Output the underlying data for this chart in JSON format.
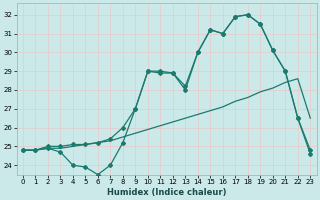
{
  "xlabel": "Humidex (Indice chaleur)",
  "xlim": [
    -0.5,
    23.5
  ],
  "ylim": [
    23.5,
    32.6
  ],
  "yticks": [
    24,
    25,
    26,
    27,
    28,
    29,
    30,
    31,
    32
  ],
  "xticks": [
    0,
    1,
    2,
    3,
    4,
    5,
    6,
    7,
    8,
    9,
    10,
    11,
    12,
    13,
    14,
    15,
    16,
    17,
    18,
    19,
    20,
    21,
    22,
    23
  ],
  "bg_color": "#cce9e9",
  "grid_color": "#b0d8d8",
  "line_color": "#1a7a6e",
  "line1_y": [
    24.8,
    24.8,
    24.9,
    24.7,
    24.0,
    23.9,
    23.5,
    24.0,
    25.2,
    27.0,
    29.0,
    29.0,
    28.9,
    28.0,
    30.0,
    31.2,
    31.0,
    31.9,
    32.0,
    31.5,
    30.1,
    29.0,
    26.5,
    24.6
  ],
  "line2_y": [
    24.8,
    24.8,
    24.9,
    24.9,
    25.0,
    25.1,
    25.2,
    25.3,
    25.5,
    25.7,
    25.9,
    26.1,
    26.3,
    26.5,
    26.7,
    26.9,
    27.1,
    27.4,
    27.6,
    27.9,
    28.1,
    28.4,
    28.6,
    26.5
  ],
  "line3_y": [
    24.8,
    24.8,
    25.0,
    25.0,
    25.1,
    25.1,
    25.2,
    25.4,
    26.0,
    27.0,
    29.0,
    28.9,
    28.9,
    28.2,
    30.0,
    31.2,
    31.0,
    31.9,
    32.0,
    31.5,
    30.1,
    29.0,
    26.5,
    24.8
  ]
}
